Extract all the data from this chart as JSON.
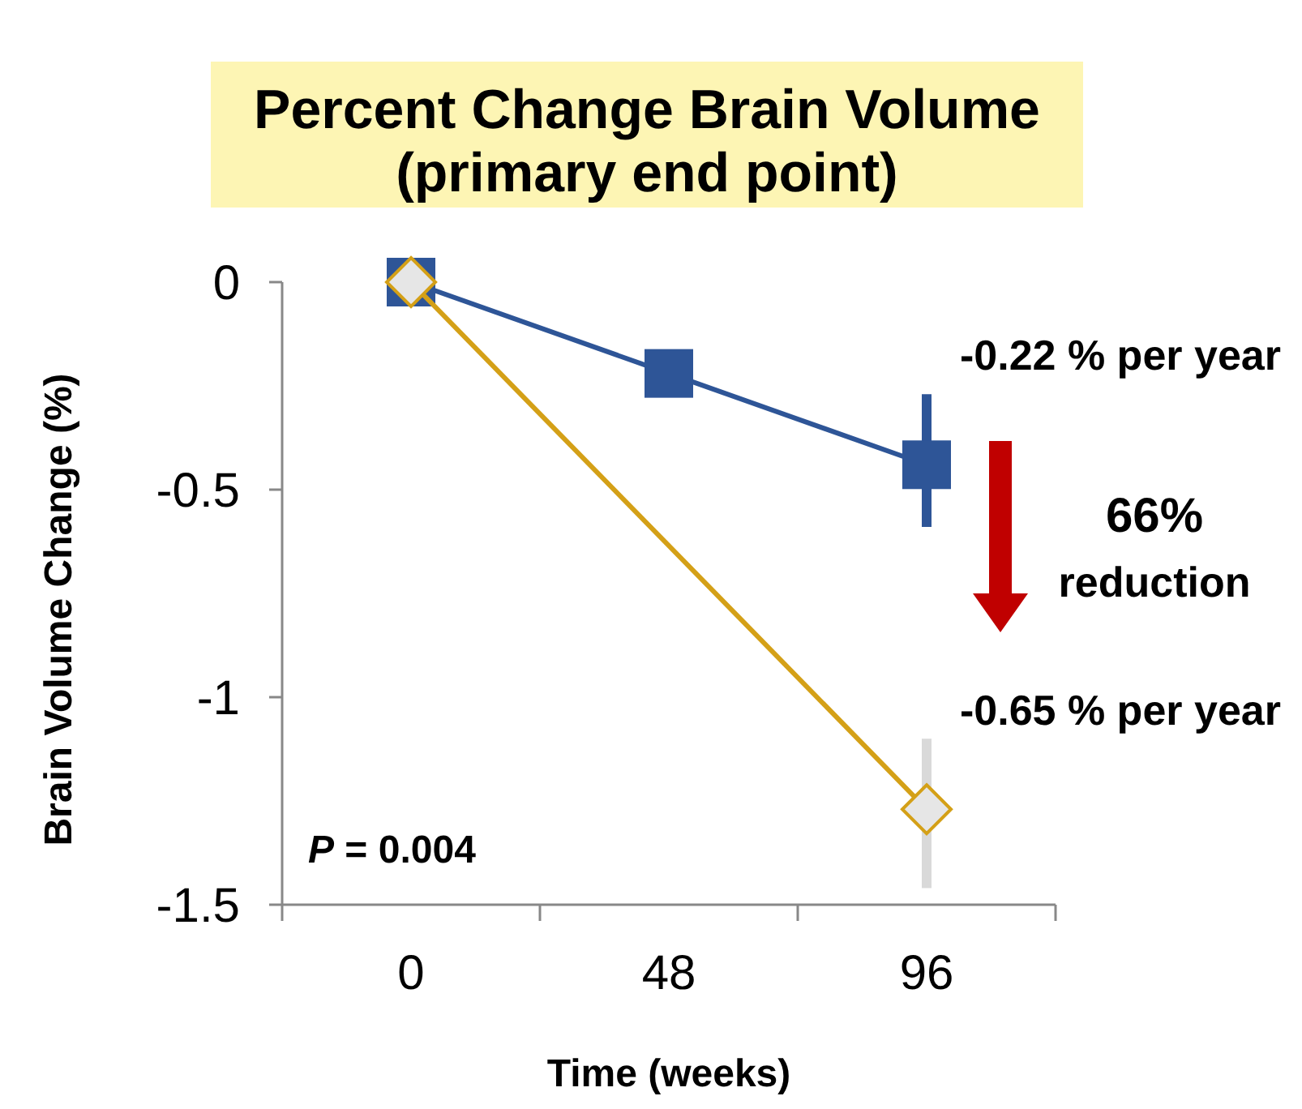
{
  "chart_data": {
    "type": "line",
    "title": "Percent Change Brain Volume",
    "subtitle": "(primary end point)",
    "xlabel": "Time (weeks)",
    "ylabel": "Brain Volume Change (%)",
    "categories": [
      "0",
      "48",
      "96"
    ],
    "series": [
      {
        "color": "#2e5597",
        "values": [
          0,
          -0.22,
          -0.44
        ],
        "marker": "square",
        "errors": [
          null,
          null,
          [
            -0.59,
            -0.27
          ]
        ]
      },
      {
        "color": "#d4a017",
        "x": [
          "0",
          "96"
        ],
        "values": [
          0,
          -1.27
        ],
        "marker": "diamond",
        "errors": [
          null,
          [
            -1.46,
            -1.1
          ]
        ]
      }
    ],
    "ylim": [
      -1.5,
      0
    ],
    "yticks": [
      0,
      -0.5,
      -1,
      -1.5
    ],
    "annotations": [
      "-0.22 % per year",
      "66%",
      "reduction",
      "-0.65 % per year",
      "P = 0.004"
    ],
    "grid": false
  }
}
